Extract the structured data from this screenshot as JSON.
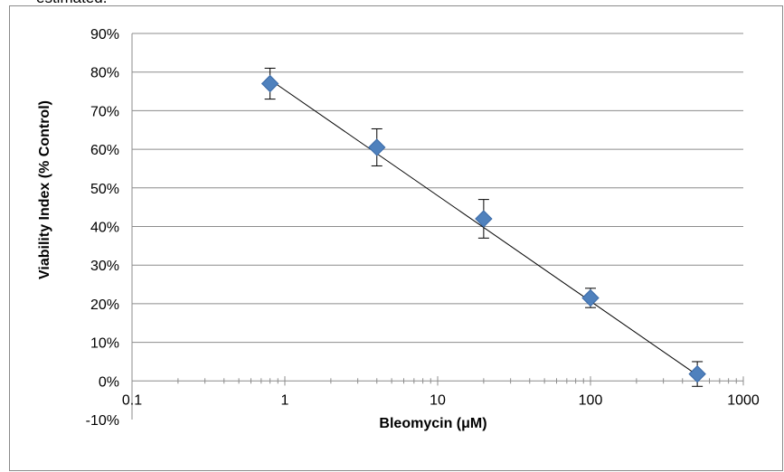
{
  "caption": "estimated.",
  "chart_data": {
    "type": "scatter",
    "title": "",
    "xlabel": "Bleomycin (μM)",
    "ylabel": "Viability Index (% Control)",
    "x_scale": "log",
    "xlim": [
      0.1,
      1000
    ],
    "ylim": [
      -10,
      90
    ],
    "x_ticks": [
      {
        "value": 0.1,
        "label": "0.1"
      },
      {
        "value": 1,
        "label": "1"
      },
      {
        "value": 10,
        "label": "10"
      },
      {
        "value": 100,
        "label": "100"
      },
      {
        "value": 1000,
        "label": "1000"
      }
    ],
    "y_ticks": [
      {
        "value": -10,
        "label": "-10%"
      },
      {
        "value": 0,
        "label": "0%"
      },
      {
        "value": 10,
        "label": "10%"
      },
      {
        "value": 20,
        "label": "20%"
      },
      {
        "value": 30,
        "label": "30%"
      },
      {
        "value": 40,
        "label": "40%"
      },
      {
        "value": 50,
        "label": "50%"
      },
      {
        "value": 60,
        "label": "60%"
      },
      {
        "value": 70,
        "label": "70%"
      },
      {
        "value": 80,
        "label": "80%"
      },
      {
        "value": 90,
        "label": "90%"
      }
    ],
    "grid": true,
    "legend": "none",
    "marker_color": "#4f81bd",
    "points": [
      {
        "x": 0.8,
        "y": 77,
        "err": 4
      },
      {
        "x": 4,
        "y": 60.5,
        "err": 4.8
      },
      {
        "x": 20,
        "y": 42,
        "err": 5
      },
      {
        "x": 100,
        "y": 21.5,
        "err": 2.5
      },
      {
        "x": 500,
        "y": 1.8,
        "err": 3.2
      }
    ],
    "trendline": {
      "type": "logarithmic",
      "x_start": 0.8,
      "y_start": 78,
      "x_end": 500,
      "y_end": 1.5
    }
  }
}
